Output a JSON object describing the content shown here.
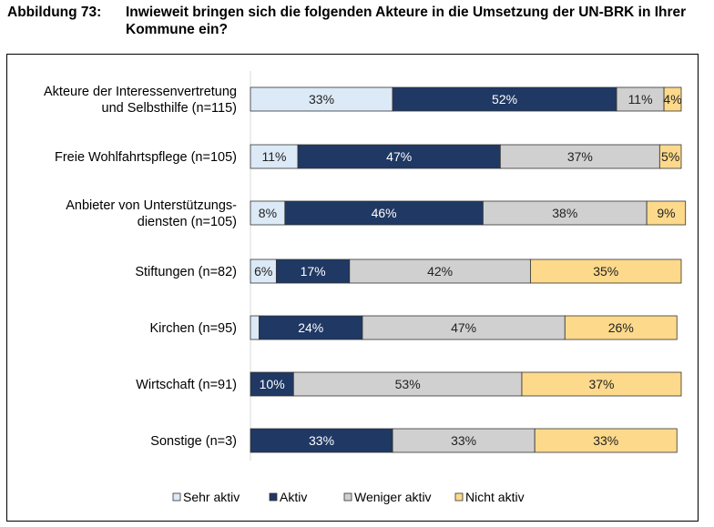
{
  "title": {
    "number": "Abbildung 73:",
    "text": "Inwieweit bringen sich die folgenden Akteure in die Umsetzung der UN-BRK in Ihrer Kommune ein?"
  },
  "colors": {
    "Sehr aktiv": "#dce9f6",
    "Aktiv": "#1f3864",
    "Weniger aktiv": "#d0d0d0",
    "Nicht aktiv": "#fcd98b",
    "border": "#333333"
  },
  "chart_data": {
    "type": "bar",
    "orientation": "horizontal",
    "stacked": true,
    "percent": true,
    "xlim": [
      0,
      100
    ],
    "categories": [
      [
        "Akteure der Interessenvertretung",
        "und Selbsthilfe (n=115)"
      ],
      [
        "Freie Wohlfahrtspflege (n=105)"
      ],
      [
        "Anbieter von Unterstützungs-",
        "diensten (n=105)"
      ],
      [
        "Stiftungen (n=82)"
      ],
      [
        "Kirchen (n=95)"
      ],
      [
        "Wirtschaft (n=91)"
      ],
      [
        "Sonstige (n=3)"
      ]
    ],
    "series": [
      {
        "name": "Sehr aktiv",
        "values": [
          33,
          11,
          8,
          6,
          2,
          0,
          0
        ],
        "labels": [
          "33%",
          "11%",
          "8%",
          "6%",
          "",
          "",
          ""
        ]
      },
      {
        "name": "Aktiv",
        "values": [
          52,
          47,
          46,
          17,
          24,
          10,
          33
        ],
        "labels": [
          "52%",
          "47%",
          "46%",
          "17%",
          "24%",
          "10%",
          "33%"
        ]
      },
      {
        "name": "Weniger aktiv",
        "values": [
          11,
          37,
          38,
          42,
          47,
          53,
          33
        ],
        "labels": [
          "11%",
          "37%",
          "38%",
          "42%",
          "47%",
          "53%",
          "33%"
        ]
      },
      {
        "name": "Nicht aktiv",
        "values": [
          4,
          5,
          9,
          35,
          26,
          37,
          33
        ],
        "labels": [
          "4%",
          "5%",
          "9%",
          "35%",
          "26%",
          "37%",
          "33%"
        ]
      }
    ],
    "legend": [
      "Sehr aktiv",
      "Aktiv",
      "Weniger aktiv",
      "Nicht aktiv"
    ],
    "legend_position": "bottom"
  }
}
